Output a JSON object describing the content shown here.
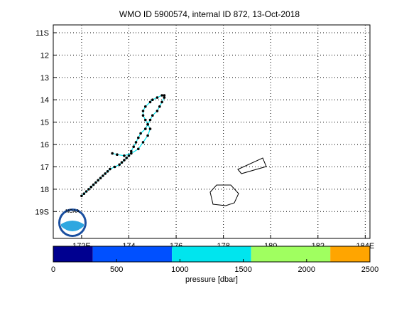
{
  "chart_data": [
    {
      "type": "line",
      "title": "WMO ID 5900574, internal ID 872, 13-Oct-2018",
      "xlabel": "",
      "ylabel": "",
      "xlim": [
        170.8,
        184.2
      ],
      "ylim": [
        10.65,
        20.2
      ],
      "y_reversed": true,
      "grid": true,
      "grid_style": "dotted",
      "x_ticks": [
        {
          "value": 172,
          "label": "172E"
        },
        {
          "value": 174,
          "label": "174"
        },
        {
          "value": 176,
          "label": "176"
        },
        {
          "value": 178,
          "label": "178"
        },
        {
          "value": 180,
          "label": "180"
        },
        {
          "value": 182,
          "label": "182"
        },
        {
          "value": 184,
          "label": "184E"
        }
      ],
      "y_ticks": [
        {
          "value": 11,
          "label": "11S"
        },
        {
          "value": 12,
          "label": "12"
        },
        {
          "value": 13,
          "label": "13"
        },
        {
          "value": 14,
          "label": "14"
        },
        {
          "value": 15,
          "label": "15"
        },
        {
          "value": 16,
          "label": "16"
        },
        {
          "value": 17,
          "label": "17"
        },
        {
          "value": 18,
          "label": "18"
        },
        {
          "value": 19,
          "label": "19S"
        }
      ],
      "series": [
        {
          "marker": "dot",
          "line_color": "#00e5ee",
          "marker_color": "#000000",
          "x": [
            173.3,
            173.5,
            173.8,
            174.1,
            174.4,
            174.6,
            174.8,
            174.9,
            174.8,
            174.7,
            174.6,
            174.6,
            174.7,
            174.9,
            175.0,
            175.2,
            175.4,
            175.5,
            175.5,
            175.4,
            175.3,
            175.2,
            175.0,
            174.9,
            174.8,
            174.7,
            174.5,
            174.4,
            174.3,
            174.2,
            174.1,
            174.0,
            173.9,
            173.8,
            173.7,
            173.6,
            173.4,
            173.2,
            173.1,
            173.0,
            172.9,
            172.8,
            172.7,
            172.6,
            172.5,
            172.4,
            172.3,
            172.2,
            172.1,
            172.0
          ],
          "y": [
            16.4,
            16.45,
            16.5,
            16.4,
            16.2,
            15.9,
            15.6,
            15.3,
            15.1,
            14.9,
            14.7,
            14.5,
            14.3,
            14.1,
            14.0,
            13.9,
            13.8,
            13.8,
            13.9,
            14.1,
            14.3,
            14.5,
            14.7,
            14.9,
            15.1,
            15.3,
            15.5,
            15.7,
            15.9,
            16.1,
            16.3,
            16.5,
            16.6,
            16.7,
            16.8,
            16.9,
            17.0,
            17.1,
            17.2,
            17.3,
            17.4,
            17.5,
            17.6,
            17.7,
            17.8,
            17.9,
            18.0,
            18.1,
            18.2,
            18.3
          ]
        }
      ],
      "colorbar": {
        "label": "pressure [dbar]",
        "ticks": [
          "0",
          "500",
          "1000",
          "1500",
          "2000",
          "2500"
        ],
        "range": [
          0,
          2500
        ],
        "segments": [
          {
            "from": 0,
            "to": 312,
            "color": "#000090"
          },
          {
            "from": 312,
            "to": 937,
            "color": "#0050ff"
          },
          {
            "from": 937,
            "to": 1562,
            "color": "#00e5ee"
          },
          {
            "from": 1562,
            "to": 2187,
            "color": "#a0ff60"
          },
          {
            "from": 2187,
            "to": 2500,
            "color": "#ffa500"
          }
        ]
      }
    }
  ],
  "logo": {
    "text": "NOAA",
    "colors": {
      "blue": "#1a4fa0",
      "light": "#2fa7e0"
    }
  }
}
